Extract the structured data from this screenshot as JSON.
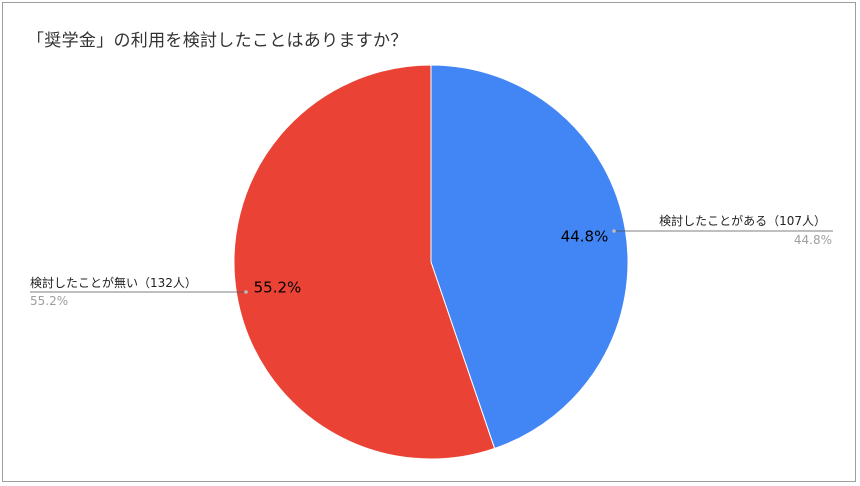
{
  "chart_data": {
    "type": "pie",
    "title": "「奨学金」の利用を検討したことはありますか？",
    "slices": [
      {
        "label": "検討したことがある（107人）",
        "value": 107,
        "percent_label": "44.8%",
        "color": "#4285f4"
      },
      {
        "label": "検討したことが無い（132人）",
        "value": 132,
        "percent_label": "55.2%",
        "color": "#ea4335"
      }
    ],
    "legend": "callout labels beside slices"
  }
}
